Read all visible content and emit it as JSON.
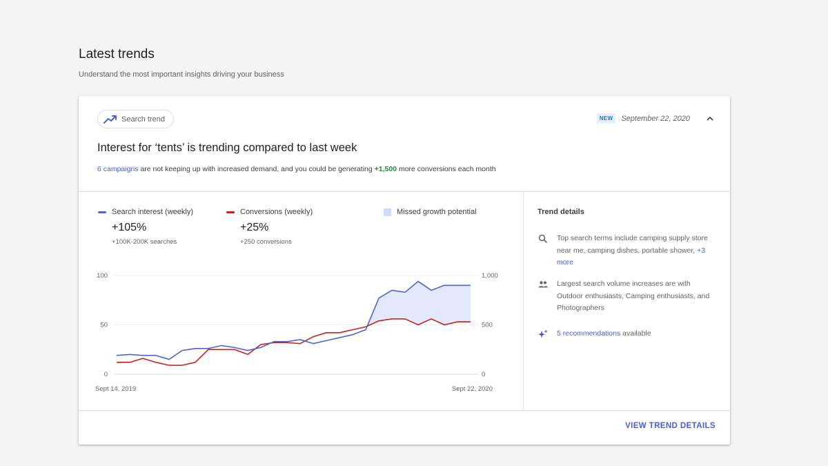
{
  "header": {
    "title": "Latest trends",
    "subtitle": "Understand the most important insights driving your business"
  },
  "card": {
    "chip_label": "Search trend",
    "chip_icon": "trending-up-icon",
    "badge": "NEW",
    "date": "September 22, 2020",
    "headline": "Interest for ‘tents’ is trending compared to last week",
    "summary": {
      "campaigns_link": "6 campaigns",
      "text_1": " are not keeping up with increased demand, and you could be generating ",
      "conversions": "+1,500",
      "text_2": " more conversions each month"
    },
    "legend": {
      "search_label": "Search interest (weekly)",
      "search_value": "+105%",
      "search_sub": "+100K-200K searches",
      "conv_label": "Conversions (weekly)",
      "conv_value": "+25%",
      "conv_sub": "+250 conversions",
      "missed_label": "Missed growth potential"
    },
    "trend_details": {
      "title": "Trend details",
      "item1_text": "Top search terms include camping supply store near me, camping dishes, portable shower, ",
      "item1_link": "+3 more",
      "item2_text": "Largest search volume increases are with Outdoor enthusiasts, Camping enthusiasts, and Photographers",
      "item3_link": "5 recommendations",
      "item3_text": " available"
    },
    "view_details": "VIEW TREND DETAILS"
  },
  "colors": {
    "search": "#4f63d2",
    "conversions": "#c5221f",
    "missed": "#e3e9fb",
    "accent": "#4a5dd8",
    "green": "#1e8e3e"
  },
  "chart_data": {
    "type": "line",
    "x_start_label": "Sept 14, 2019",
    "x_end_label": "Sept 22, 2020",
    "y_left_ticks": [
      "100",
      "50",
      "0"
    ],
    "y_right_ticks": [
      "1,000",
      "500",
      "0"
    ],
    "ylim_left": [
      0,
      100
    ],
    "ylim_right": [
      0,
      1000
    ],
    "series": [
      {
        "name": "Search interest (weekly)",
        "axis": "left",
        "values": [
          19,
          20,
          19,
          19,
          15,
          24,
          26,
          26,
          29,
          27,
          24,
          27,
          33,
          33,
          35,
          31,
          34,
          37,
          40,
          45,
          77,
          85,
          83,
          94,
          85,
          90,
          90,
          90
        ]
      },
      {
        "name": "Conversions (weekly)",
        "axis": "right",
        "values": [
          120,
          120,
          160,
          120,
          90,
          90,
          120,
          250,
          250,
          250,
          200,
          300,
          320,
          320,
          310,
          380,
          420,
          420,
          450,
          480,
          540,
          560,
          560,
          500,
          560,
          500,
          530,
          530
        ]
      }
    ]
  }
}
